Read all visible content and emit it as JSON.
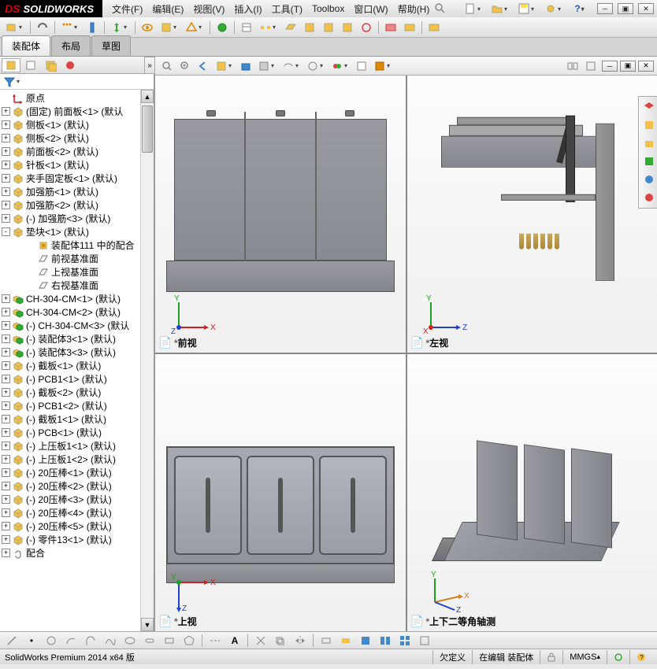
{
  "app": {
    "logo_prefix": "DS",
    "logo_name": "SOLIDWORKS"
  },
  "menu": {
    "items": [
      "文件(F)",
      "编辑(E)",
      "视图(V)",
      "插入(I)",
      "工具(T)",
      "Toolbox",
      "窗口(W)",
      "帮助(H)"
    ]
  },
  "tabs": {
    "items": [
      "装配体",
      "布局",
      "草图"
    ],
    "active": 0
  },
  "tree": {
    "origin": "原点",
    "items": [
      {
        "exp": "+",
        "text": "(固定) 前面板<1> (默认"
      },
      {
        "exp": "+",
        "text": "侧板<1> (默认)"
      },
      {
        "exp": "+",
        "text": "侧板<2> (默认)"
      },
      {
        "exp": "+",
        "text": "前面板<2> (默认)"
      },
      {
        "exp": "+",
        "text": "针板<1> (默认)"
      },
      {
        "exp": "+",
        "text": "夹手固定板<1> (默认)"
      },
      {
        "exp": "+",
        "text": "加强筋<1> (默认)"
      },
      {
        "exp": "+",
        "text": "加强筋<2> (默认)"
      },
      {
        "exp": "+",
        "text": "(-) 加强筋<3> (默认)"
      },
      {
        "exp": "-",
        "text": "垫块<1> (默认)",
        "children": [
          {
            "ico": "mate",
            "text": "装配体111 中的配合"
          },
          {
            "ico": "plane",
            "text": "前视基准面"
          },
          {
            "ico": "plane",
            "text": "上视基准面"
          },
          {
            "ico": "plane",
            "text": "右视基准面"
          }
        ]
      },
      {
        "exp": "+",
        "ico": "asm",
        "text": "CH-304-CM<1> (默认)"
      },
      {
        "exp": "+",
        "ico": "asm",
        "text": "CH-304-CM<2> (默认)"
      },
      {
        "exp": "+",
        "ico": "asm",
        "text": "(-) CH-304-CM<3> (默认"
      },
      {
        "exp": "+",
        "ico": "asm",
        "text": "(-) 装配体3<1> (默认)"
      },
      {
        "exp": "+",
        "ico": "asm",
        "text": "(-) 装配体3<3> (默认)"
      },
      {
        "exp": "+",
        "text": "(-) 截板<1> (默认)"
      },
      {
        "exp": "+",
        "text": "(-) PCB1<1> (默认)"
      },
      {
        "exp": "+",
        "text": "(-) 截板<2> (默认)"
      },
      {
        "exp": "+",
        "text": "(-) PCB1<2> (默认)"
      },
      {
        "exp": "+",
        "text": "(-) 截板1<1> (默认)"
      },
      {
        "exp": "+",
        "text": "(-) PCB<1> (默认)"
      },
      {
        "exp": "+",
        "text": "(-) 上压板1<1> (默认)"
      },
      {
        "exp": "+",
        "text": "(-) 上压板1<2> (默认)"
      },
      {
        "exp": "+",
        "text": "(-) 20压棒<1> (默认)"
      },
      {
        "exp": "+",
        "text": "(-) 20压棒<2> (默认)"
      },
      {
        "exp": "+",
        "text": "(-) 20压棒<3> (默认)"
      },
      {
        "exp": "+",
        "text": "(-) 20压棒<4> (默认)"
      },
      {
        "exp": "+",
        "text": "(-) 20压棒<5> (默认)"
      },
      {
        "exp": "+",
        "text": "(-) 零件13<1> (默认)"
      }
    ],
    "mates": "配合"
  },
  "viewports": {
    "tl": "前视",
    "tr": "左视",
    "bl": "上视",
    "br": "上下二等角轴测"
  },
  "status": {
    "left": "SolidWorks Premium 2014 x64 版",
    "underdefined": "欠定义",
    "editing": "在编辑 装配体",
    "units": "MMGS"
  },
  "colors": {
    "axis_x": "#d02020",
    "axis_y": "#20a020",
    "axis_z": "#2040d0",
    "axis_orange": "#d08020"
  }
}
